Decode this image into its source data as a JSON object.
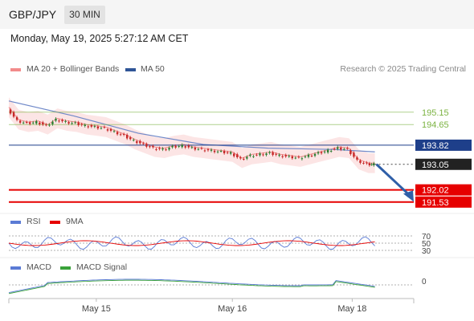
{
  "header": {
    "symbol": "GBP/JPY",
    "timeframe": "30 MIN"
  },
  "datetime": "Monday, May 19, 2025 5:27:12 AM CET",
  "research": "Research © 2025 Trading Central",
  "legend": [
    {
      "label": "MA 20 + Bollinger Bands",
      "color": "#f28b8b"
    },
    {
      "label": "MA 50",
      "color": "#2f5597"
    }
  ],
  "rsi_legend": [
    {
      "label": "RSI",
      "color": "#5b7bd5"
    },
    {
      "label": "9MA",
      "color": "#e60000"
    }
  ],
  "macd_legend": [
    {
      "label": "MACD",
      "color": "#5b7bd5"
    },
    {
      "label": "MACD Signal",
      "color": "#3aa23a"
    }
  ],
  "chart_data": {
    "type": "line",
    "instrument": "GBP/JPY",
    "interval": "30 MIN",
    "price_levels": [
      {
        "value": 195.15,
        "label": "195.15",
        "kind": "resistance",
        "color": "#7cb342"
      },
      {
        "value": 194.65,
        "label": "194.65",
        "kind": "resistance",
        "color": "#7cb342"
      },
      {
        "value": 193.82,
        "label": "193.82",
        "kind": "pivot",
        "color": "#1e3f8a"
      },
      {
        "value": 193.05,
        "label": "193.05",
        "kind": "last",
        "color": "#222222"
      },
      {
        "value": 192.02,
        "label": "192.02",
        "kind": "support",
        "color": "#e60000"
      },
      {
        "value": 191.53,
        "label": "191.53",
        "kind": "support",
        "color": "#e60000"
      }
    ],
    "price_ylim": [
      191.2,
      196.5
    ],
    "price_series": [
      {
        "x": 0,
        "close": 195.3
      },
      {
        "x": 3,
        "close": 194.8
      },
      {
        "x": 6,
        "close": 194.7
      },
      {
        "x": 9,
        "close": 194.75
      },
      {
        "x": 12,
        "close": 194.6
      },
      {
        "x": 15,
        "close": 194.85
      },
      {
        "x": 18,
        "close": 194.75
      },
      {
        "x": 21,
        "close": 194.7
      },
      {
        "x": 24,
        "close": 194.6
      },
      {
        "x": 27,
        "close": 194.55
      },
      {
        "x": 30,
        "close": 194.5
      },
      {
        "x": 33,
        "close": 194.35
      },
      {
        "x": 36,
        "close": 194.2
      },
      {
        "x": 39,
        "close": 194.0
      },
      {
        "x": 42,
        "close": 193.85
      },
      {
        "x": 45,
        "close": 193.7
      },
      {
        "x": 48,
        "close": 193.65
      },
      {
        "x": 51,
        "close": 193.75
      },
      {
        "x": 54,
        "close": 193.8
      },
      {
        "x": 57,
        "close": 193.7
      },
      {
        "x": 60,
        "close": 193.65
      },
      {
        "x": 63,
        "close": 193.6
      },
      {
        "x": 66,
        "close": 193.55
      },
      {
        "x": 69,
        "close": 193.5
      },
      {
        "x": 72,
        "close": 193.25
      },
      {
        "x": 75,
        "close": 193.4
      },
      {
        "x": 78,
        "close": 193.45
      },
      {
        "x": 81,
        "close": 193.5
      },
      {
        "x": 84,
        "close": 193.4
      },
      {
        "x": 87,
        "close": 193.35
      },
      {
        "x": 90,
        "close": 193.3
      },
      {
        "x": 93,
        "close": 193.4
      },
      {
        "x": 96,
        "close": 193.5
      },
      {
        "x": 99,
        "close": 193.6
      },
      {
        "x": 102,
        "close": 193.7
      },
      {
        "x": 105,
        "close": 193.65
      },
      {
        "x": 108,
        "close": 193.2
      },
      {
        "x": 111,
        "close": 193.05
      },
      {
        "x": 113,
        "close": 193.05
      }
    ],
    "ma50": [
      {
        "x": 0,
        "y": 195.6
      },
      {
        "x": 20,
        "y": 195.0
      },
      {
        "x": 40,
        "y": 194.3
      },
      {
        "x": 60,
        "y": 193.85
      },
      {
        "x": 80,
        "y": 193.7
      },
      {
        "x": 100,
        "y": 193.65
      },
      {
        "x": 113,
        "y": 193.55
      }
    ],
    "xlim": [
      0,
      125
    ],
    "x_ticks": [
      {
        "x": 27,
        "label": "May 15"
      },
      {
        "x": 69,
        "label": "May 16"
      },
      {
        "x": 106,
        "label": "May 18"
      }
    ],
    "rsi_levels": [
      "70",
      "50",
      "30"
    ],
    "macd_levels": [
      "0"
    ]
  }
}
